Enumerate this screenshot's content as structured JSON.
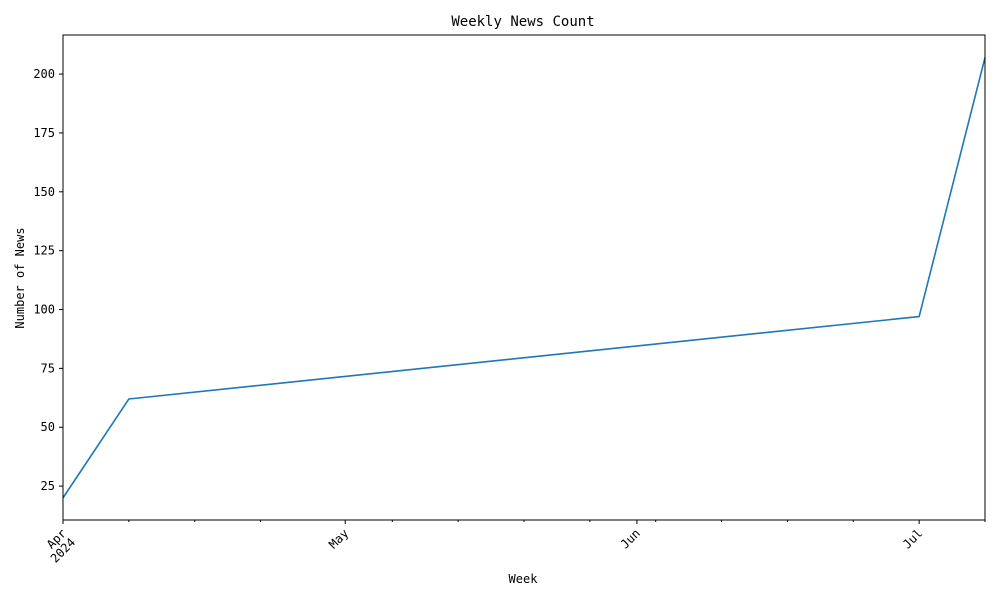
{
  "chart_data": {
    "type": "line",
    "title": "Weekly News Count",
    "xlabel": "Week",
    "ylabel": "Number of News",
    "x_is_date": true,
    "xlim": [
      "2024-04-01",
      "2024-07-08"
    ],
    "ylim": [
      10.6,
      216.6
    ],
    "grid": false,
    "series": [
      {
        "color": "#1f77b4",
        "points": [
          {
            "x": "2024-04-01",
            "y": 20
          },
          {
            "x": "2024-04-08",
            "y": 62
          },
          {
            "x": "2024-07-01",
            "y": 97
          },
          {
            "x": "2024-07-08",
            "y": 207
          }
        ]
      }
    ],
    "y_ticks": [
      25,
      50,
      75,
      100,
      125,
      150,
      175,
      200
    ],
    "x_major_ticks": [
      {
        "date": "2024-04-01",
        "label": "Apr",
        "sublabel": "2024"
      },
      {
        "date": "2024-05-01",
        "label": "May",
        "sublabel": ""
      },
      {
        "date": "2024-06-01",
        "label": "Jun",
        "sublabel": ""
      },
      {
        "date": "2024-07-01",
        "label": "Jul",
        "sublabel": ""
      }
    ],
    "x_minor_ticks": [
      "2024-04-08",
      "2024-04-15",
      "2024-04-22",
      "2024-05-06",
      "2024-05-13",
      "2024-05-20",
      "2024-05-27",
      "2024-06-03",
      "2024-06-10",
      "2024-06-17",
      "2024-06-24",
      "2024-07-08"
    ]
  }
}
